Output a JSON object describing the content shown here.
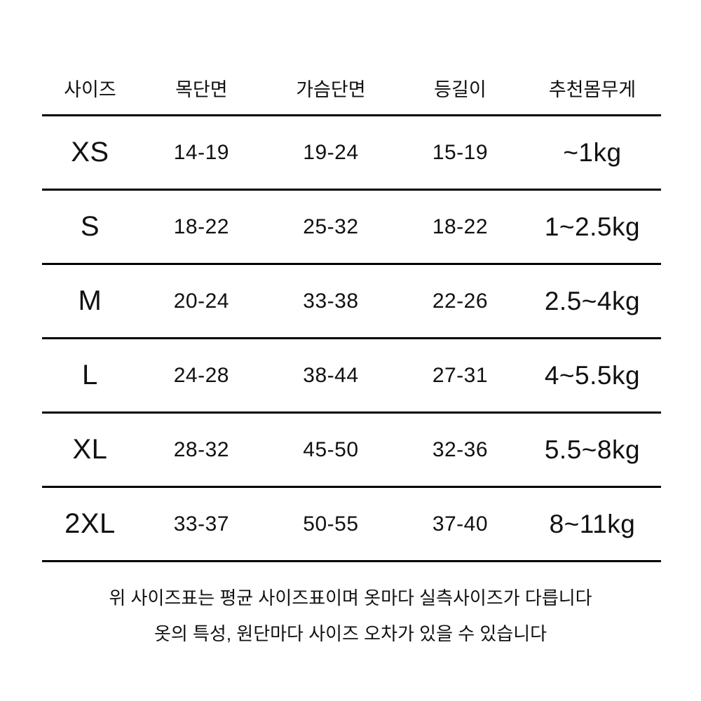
{
  "chart_data": {
    "type": "table",
    "columns": [
      "사이즈",
      "목단면",
      "가슴단면",
      "등길이",
      "추천몸무게"
    ],
    "rows": [
      [
        "XS",
        "14-19",
        "19-24",
        "15-19",
        "~1kg"
      ],
      [
        "S",
        "18-22",
        "25-32",
        "18-22",
        "1~2.5kg"
      ],
      [
        "M",
        "20-24",
        "33-38",
        "22-26",
        "2.5~4kg"
      ],
      [
        "L",
        "24-28",
        "38-44",
        "27-31",
        "4~5.5kg"
      ],
      [
        "XL",
        "28-32",
        "45-50",
        "32-36",
        "5.5~8kg"
      ],
      [
        "2XL",
        "33-37",
        "50-55",
        "37-40",
        "8~11kg"
      ]
    ],
    "title": "",
    "layout_hints": {
      "grid": "horizontal-rules-only",
      "alignment": "center"
    }
  },
  "notes": {
    "line1": "위 사이즈표는 평균 사이즈표이며 옷마다 실측사이즈가 다릅니다",
    "line2": "옷의 특성, 원단마다 사이즈 오차가 있을 수 있습니다"
  },
  "colors": {
    "background": "#ffffff",
    "text": "#111111",
    "rule_line": "#000000"
  }
}
